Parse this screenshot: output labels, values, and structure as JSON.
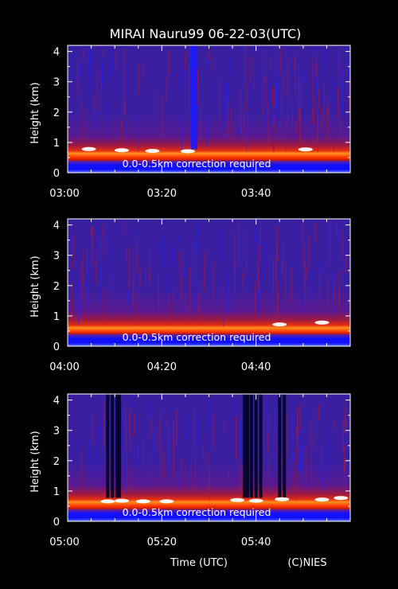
{
  "title": "MIRAI Nauru99 06-22-03(UTC)",
  "xlabel": "Time (UTC)",
  "credit": "(C)NIES",
  "chart_data": [
    {
      "type": "heatmap",
      "ylabel": "Height (km)",
      "ylim": [
        0,
        4.2
      ],
      "yticks": [
        "0",
        "1",
        "2",
        "3",
        "4"
      ],
      "xlim": [
        "03:00",
        "04:00"
      ],
      "xticks": [
        "03:00",
        "03:20",
        "03:40"
      ],
      "annotation": "0.0-0.5km correction required",
      "colors": {
        "background": "#3a1fa0",
        "low": "#1010ff",
        "mid": "#cc1a00",
        "high": "#ff9020",
        "peak": "#ffffff"
      },
      "cloud_base_km": 0.68,
      "dark_columns_min": [
        26.5,
        27.2
      ],
      "bright_patches_min": [
        [
          4.5,
          0.78
        ],
        [
          11.5,
          0.74
        ],
        [
          18.0,
          0.72
        ],
        [
          25.5,
          0.71
        ],
        [
          50.5,
          0.77
        ]
      ]
    },
    {
      "type": "heatmap",
      "ylabel": "Height (km)",
      "ylim": [
        0,
        4.2
      ],
      "yticks": [
        "0",
        "1",
        "2",
        "3",
        "4"
      ],
      "xlim": [
        "04:00",
        "05:00"
      ],
      "xticks": [
        "04:00",
        "04:20",
        "04:40"
      ],
      "annotation": "0.0-0.5km correction required",
      "colors": {
        "background": "#3a1fa0",
        "low": "#1010ff",
        "mid": "#cc1a00",
        "high": "#ff9020",
        "peak": "#ffffff"
      },
      "cloud_base_km": 0.65,
      "dark_columns_min": [],
      "bright_patches_min": [
        [
          45.0,
          0.72
        ],
        [
          54.0,
          0.78
        ]
      ]
    },
    {
      "type": "heatmap",
      "ylabel": "Height (km)",
      "ylim": [
        0,
        4.2
      ],
      "yticks": [
        "0",
        "1",
        "2",
        "3",
        "4"
      ],
      "xlim": [
        "05:00",
        "06:00"
      ],
      "xticks": [
        "05:00",
        "05:20",
        "05:40"
      ],
      "annotation": "0.0-0.5km correction required",
      "colors": {
        "background": "#3a1fa0",
        "low": "#1010ff",
        "mid": "#cc1a00",
        "high": "#ff9020",
        "peak": "#ffffff"
      },
      "cloud_base_km": 0.68,
      "dark_columns_min": [
        8.5,
        9.5,
        10.5,
        11.0,
        37.5,
        38.2,
        39.0,
        40.0,
        41.0,
        45.0,
        46.0
      ],
      "bright_patches_min": [
        [
          8.5,
          0.66
        ],
        [
          11.5,
          0.68
        ],
        [
          16.0,
          0.66
        ],
        [
          21.0,
          0.66
        ],
        [
          36.0,
          0.7
        ],
        [
          40.0,
          0.68
        ],
        [
          45.5,
          0.73
        ],
        [
          54.0,
          0.72
        ],
        [
          58.0,
          0.77
        ]
      ]
    }
  ]
}
